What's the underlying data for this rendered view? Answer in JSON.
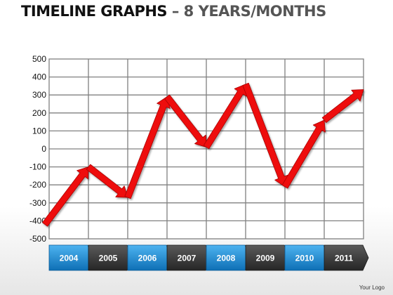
{
  "header": {
    "title_main": "TIMELINE GRAPHS",
    "title_sub": "– 8 YEARS/MONTHS"
  },
  "footer": {
    "logo": "Your Logo"
  },
  "colors": {
    "arrow": "#ee1111",
    "arrow_dark": "#aa0000",
    "grid": "#808080",
    "bar_blue": "#1a8fd8",
    "bar_dark": "#3d3d3d"
  },
  "chart_data": {
    "type": "line",
    "title": "",
    "xlabel": "",
    "ylabel": "",
    "categories": [
      "2004",
      "2005",
      "2006",
      "2007",
      "2008",
      "2009",
      "2010",
      "2011"
    ],
    "y_ticks": [
      "500",
      "400",
      "300",
      "200",
      "100",
      "0",
      "-100",
      "-200",
      "-300",
      "-400",
      "-500"
    ],
    "ylim": [
      -500,
      500
    ],
    "grid": true,
    "series": [
      {
        "x": [
          0,
          1,
          2,
          3,
          4,
          5,
          6,
          7,
          8
        ],
        "values": [
          -420,
          -100,
          -270,
          290,
          10,
          360,
          -210,
          160,
          330
        ]
      }
    ]
  }
}
